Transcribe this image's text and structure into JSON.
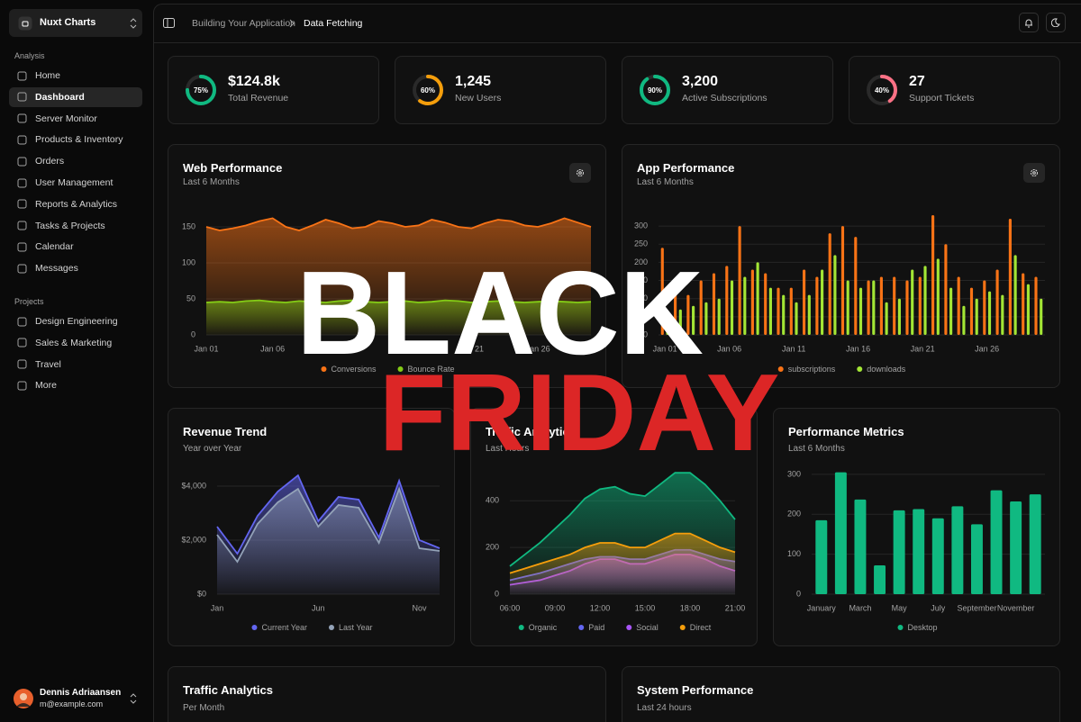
{
  "sidebar": {
    "app_name": "Nuxt Charts",
    "sections": [
      {
        "title": "Analysis",
        "items": [
          {
            "label": "Home"
          },
          {
            "label": "Dashboard",
            "active": true
          },
          {
            "label": "Server Monitor"
          },
          {
            "label": "Products & Inventory"
          },
          {
            "label": "Orders"
          },
          {
            "label": "User Management"
          },
          {
            "label": "Reports & Analytics"
          },
          {
            "label": "Tasks & Projects"
          },
          {
            "label": "Calendar"
          },
          {
            "label": "Messages"
          }
        ]
      },
      {
        "title": "Projects",
        "items": [
          {
            "label": "Design Engineering"
          },
          {
            "label": "Sales & Marketing"
          },
          {
            "label": "Travel"
          },
          {
            "label": "More"
          }
        ]
      }
    ],
    "user": {
      "name": "Dennis Adriaansen",
      "email": "m@example.com"
    }
  },
  "header": {
    "breadcrumb": [
      "Building Your Application",
      "Data Fetching"
    ]
  },
  "stats": [
    {
      "percent": 75,
      "percent_label": "75%",
      "value": "$124.8k",
      "label": "Total Revenue",
      "color": "#10b981"
    },
    {
      "percent": 60,
      "percent_label": "60%",
      "value": "1,245",
      "label": "New Users",
      "color": "#f59e0b"
    },
    {
      "percent": 90,
      "percent_label": "90%",
      "value": "3,200",
      "label": "Active Subscriptions",
      "color": "#10b981"
    },
    {
      "percent": 40,
      "percent_label": "40%",
      "value": "27",
      "label": "Support Tickets",
      "color": "#fb7185"
    }
  ],
  "charts": [
    {
      "type": "area",
      "title": "Web Performance",
      "subtitle": "Last 6 Months",
      "grid": true,
      "categories": [
        "Jan 01",
        null,
        null,
        null,
        null,
        "Jan 06",
        null,
        null,
        null,
        null,
        "Jan 11",
        null,
        null,
        null,
        null,
        "Jan 16",
        null,
        null,
        null,
        null,
        "Jan 21",
        null,
        null,
        null,
        null,
        "Jan 26",
        null,
        null,
        null,
        null
      ],
      "ylim": [
        0,
        170
      ],
      "yticks": [
        0,
        50,
        100,
        150
      ],
      "series": [
        {
          "name": "Conversions",
          "color": "#f97316",
          "values": [
            150,
            145,
            148,
            152,
            158,
            162,
            150,
            145,
            152,
            160,
            155,
            148,
            150,
            158,
            155,
            150,
            152,
            160,
            156,
            150,
            148,
            155,
            160,
            158,
            152,
            150,
            155,
            162,
            156,
            150
          ]
        },
        {
          "name": "Bounce Rate",
          "color": "#84cc16",
          "values": [
            45,
            46,
            45,
            47,
            48,
            46,
            45,
            47,
            46,
            45,
            47,
            48,
            46,
            45,
            46,
            47,
            45,
            46,
            48,
            47,
            45,
            46,
            47,
            46,
            45,
            46,
            47,
            46,
            45,
            46
          ]
        }
      ]
    },
    {
      "type": "bar",
      "title": "App Performance",
      "subtitle": "Last 6 Months",
      "grid": true,
      "categories": [
        "Jan 01",
        null,
        null,
        null,
        null,
        "Jan 06",
        null,
        null,
        null,
        null,
        "Jan 11",
        null,
        null,
        null,
        null,
        "Jan 16",
        null,
        null,
        null,
        null,
        "Jan 21",
        null,
        null,
        null,
        null,
        "Jan 26",
        null,
        null,
        null,
        null
      ],
      "ylim": [
        0,
        330
      ],
      "yticks": [
        0,
        50,
        100,
        150,
        200,
        250,
        300
      ],
      "series": [
        {
          "name": "subscriptions",
          "color": "#f97316",
          "values": [
            240,
            120,
            110,
            150,
            170,
            190,
            300,
            180,
            170,
            130,
            130,
            180,
            160,
            280,
            300,
            270,
            150,
            160,
            160,
            150,
            160,
            330,
            250,
            160,
            130,
            150,
            180,
            320,
            170,
            160
          ]
        },
        {
          "name": "downloads",
          "color": "#a3e635",
          "values": [
            60,
            70,
            80,
            90,
            100,
            150,
            160,
            200,
            130,
            110,
            90,
            110,
            180,
            220,
            150,
            130,
            150,
            90,
            100,
            180,
            190,
            210,
            130,
            80,
            100,
            120,
            110,
            220,
            140,
            100
          ]
        }
      ]
    },
    {
      "type": "area",
      "title": "Revenue Trend",
      "subtitle": "Year over Year",
      "grid": true,
      "categories": [
        "Jan",
        null,
        null,
        null,
        null,
        "Jun",
        null,
        null,
        null,
        null,
        "Nov",
        null
      ],
      "ylim": [
        0,
        4600
      ],
      "yticks": [
        {
          "value": 0,
          "label": "$0"
        },
        {
          "value": 2000,
          "label": "$2,000"
        },
        {
          "value": 4000,
          "label": "$4,000"
        }
      ],
      "series": [
        {
          "name": "Current Year",
          "color": "#6366f1",
          "values": [
            2500,
            1500,
            2900,
            3800,
            4400,
            2700,
            3600,
            3500,
            2100,
            4200,
            2000,
            1700
          ]
        },
        {
          "name": "Last Year",
          "color": "#94a3b8",
          "values": [
            2200,
            1200,
            2600,
            3400,
            3900,
            2500,
            3300,
            3200,
            1900,
            3900,
            1700,
            1600
          ]
        }
      ]
    },
    {
      "type": "area",
      "title": "Traffic Analytics",
      "subtitle": "Last Hours",
      "grid": true,
      "categories": [
        "06:00",
        null,
        null,
        "09:00",
        null,
        null,
        "12:00",
        null,
        null,
        "15:00",
        null,
        null,
        "18:00",
        null,
        null,
        "21:00"
      ],
      "ylim": [
        0,
        540
      ],
      "yticks": [
        0,
        200,
        400
      ],
      "series": [
        {
          "name": "Organic",
          "color": "#10b981",
          "values": [
            120,
            170,
            220,
            280,
            340,
            410,
            450,
            460,
            430,
            420,
            470,
            520,
            520,
            470,
            400,
            320
          ]
        },
        {
          "name": "Paid",
          "color": "#6366f1",
          "values": [
            60,
            75,
            90,
            110,
            130,
            150,
            160,
            160,
            150,
            150,
            170,
            190,
            190,
            170,
            150,
            140
          ]
        },
        {
          "name": "Social",
          "color": "#a855f7",
          "values": [
            40,
            50,
            60,
            80,
            100,
            130,
            150,
            150,
            130,
            130,
            150,
            170,
            170,
            150,
            120,
            100
          ]
        },
        {
          "name": "Direct",
          "color": "#f59e0b",
          "values": [
            90,
            110,
            130,
            150,
            170,
            200,
            220,
            220,
            200,
            200,
            230,
            260,
            260,
            230,
            200,
            180
          ]
        }
      ]
    },
    {
      "type": "bar",
      "title": "Performance Metrics",
      "subtitle": "Last 6 Months",
      "grid": true,
      "categories": [
        "January",
        null,
        "March",
        null,
        "May",
        null,
        "July",
        null,
        "September",
        null,
        "November",
        null
      ],
      "ylim": [
        0,
        320
      ],
      "yticks": [
        0,
        100,
        200,
        300
      ],
      "series": [
        {
          "name": "Desktop",
          "color": "#10b981",
          "values": [
            185,
            305,
            237,
            72,
            210,
            213,
            190,
            220,
            175,
            260,
            232,
            250
          ]
        }
      ]
    }
  ],
  "panels": [
    {
      "title": "Traffic Analytics",
      "subtitle": "Per Month"
    },
    {
      "title": "System Performance",
      "subtitle": "Last 24 hours"
    }
  ],
  "overlay": {
    "line1": "BLACK",
    "line2": "FRIDAY"
  }
}
